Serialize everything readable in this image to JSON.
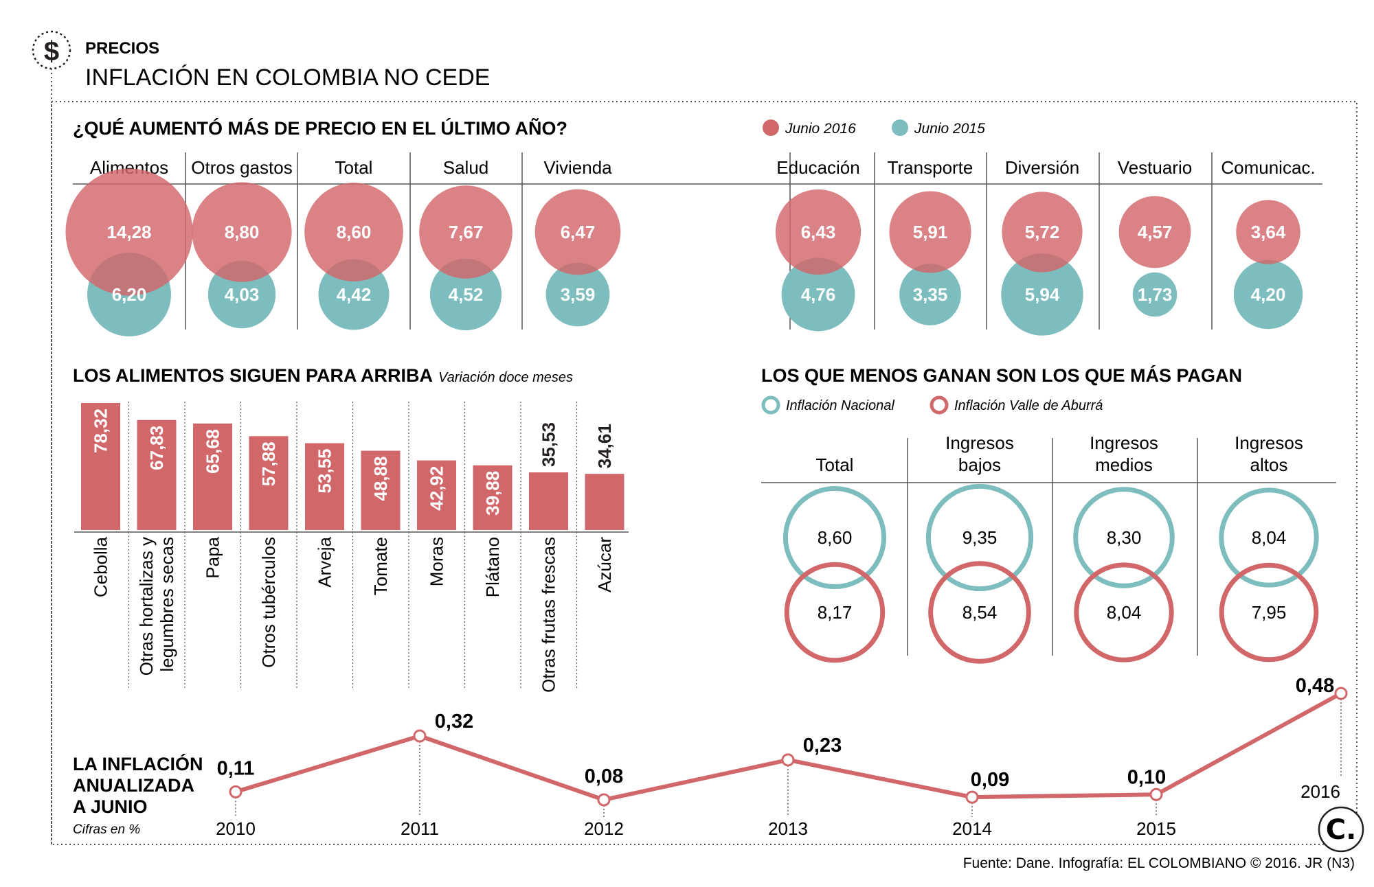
{
  "header": {
    "section": "PRECIOS",
    "title": "INFLACIÓN EN COLOMBIA NO CEDE",
    "icon": "dollar-icon"
  },
  "colors": {
    "red": "#d2676a",
    "teal": "#7ebdbd",
    "text": "#231f20",
    "rule": "#555555"
  },
  "footer": {
    "source": "Fuente: Dane. Infografía: EL COLOMBIANO © 2016. JR (N3)",
    "logo_letter": "C."
  },
  "chart_data": [
    {
      "type": "bubble",
      "title": "¿QUÉ AUMENTÓ MÁS DE PRECIO EN EL ÚLTIMO AÑO?",
      "legend": [
        "Junio 2016",
        "Junio 2015"
      ],
      "categories": [
        "Alimentos",
        "Otros gastos",
        "Total",
        "Salud",
        "Vivienda",
        "Educación",
        "Transporte",
        "Diversión",
        "Vestuario",
        "Comunicac."
      ],
      "series": [
        {
          "name": "Junio 2016",
          "values": [
            14.28,
            8.8,
            8.6,
            7.67,
            6.47,
            6.43,
            5.91,
            5.72,
            4.57,
            3.64
          ],
          "labels": [
            "14,28",
            "8,80",
            "8,60",
            "7,67",
            "6,47",
            "6,43",
            "5,91",
            "5,72",
            "4,57",
            "3,64"
          ]
        },
        {
          "name": "Junio 2015",
          "values": [
            6.2,
            4.03,
            4.42,
            4.52,
            3.59,
            4.76,
            3.35,
            5.94,
            1.73,
            4.2
          ],
          "labels": [
            "6,20",
            "4,03",
            "4,42",
            "4,52",
            "3,59",
            "4,76",
            "3,35",
            "5,94",
            "1,73",
            "4,20"
          ]
        }
      ]
    },
    {
      "type": "bar",
      "title": "LOS ALIMENTOS SIGUEN PARA ARRIBA",
      "subtitle": "Variación doce meses",
      "categories": [
        "Cebolla",
        "Otras hortalizas y legumbres secas",
        "Papa",
        "Otros tubérculos",
        "Arveja",
        "Tomate",
        "Moras",
        "Plátano",
        "Otras frutas frescas",
        "Azúcar"
      ],
      "category_lines": [
        [
          "Cebolla"
        ],
        [
          "Otras hortalizas y",
          "legumbres secas"
        ],
        [
          "Papa"
        ],
        [
          "Otros tubérculos"
        ],
        [
          "Arveja"
        ],
        [
          "Tomate"
        ],
        [
          "Moras"
        ],
        [
          "Plátano"
        ],
        [
          "Otras frutas frescas"
        ],
        [
          "Azúcar"
        ]
      ],
      "values": [
        78.32,
        67.83,
        65.68,
        57.88,
        53.55,
        48.88,
        42.92,
        39.88,
        35.53,
        34.61
      ],
      "labels": [
        "78,32",
        "67,83",
        "65,68",
        "57,88",
        "53,55",
        "48,88",
        "42,92",
        "39,88",
        "35,53",
        "34,61"
      ],
      "ylim": [
        0,
        80
      ]
    },
    {
      "type": "ring",
      "title": "LOS QUE MENOS GANAN SON LOS QUE MÁS PAGAN",
      "legend": [
        "Inflación Nacional",
        "Inflación Valle de Aburrá"
      ],
      "categories": [
        "Total",
        "Ingresos bajos",
        "Ingresos medios",
        "Ingresos altos"
      ],
      "category_lines": [
        [
          "Total"
        ],
        [
          "Ingresos",
          "bajos"
        ],
        [
          "Ingresos",
          "medios"
        ],
        [
          "Ingresos",
          "altos"
        ]
      ],
      "series": [
        {
          "name": "Inflación Nacional",
          "values": [
            8.6,
            9.35,
            8.3,
            8.04
          ],
          "labels": [
            "8,60",
            "9,35",
            "8,30",
            "8,04"
          ]
        },
        {
          "name": "Inflación Valle de Aburrá",
          "values": [
            8.17,
            8.54,
            8.04,
            7.95
          ],
          "labels": [
            "8,17",
            "8,54",
            "8,04",
            "7,95"
          ]
        }
      ]
    },
    {
      "type": "line",
      "title_lines": [
        "LA INFLACIÓN",
        "ANUALIZADA",
        "A JUNIO"
      ],
      "subtitle": "Cifras en %",
      "x": [
        "2010",
        "2011",
        "2012",
        "2013",
        "2014",
        "2015",
        "2016"
      ],
      "values": [
        0.11,
        0.32,
        0.08,
        0.23,
        0.09,
        0.1,
        0.48
      ],
      "labels": [
        "0,11",
        "0,32",
        "0,08",
        "0,23",
        "0,09",
        "0,10",
        "0,48"
      ],
      "ylim": [
        0,
        0.5
      ]
    }
  ]
}
